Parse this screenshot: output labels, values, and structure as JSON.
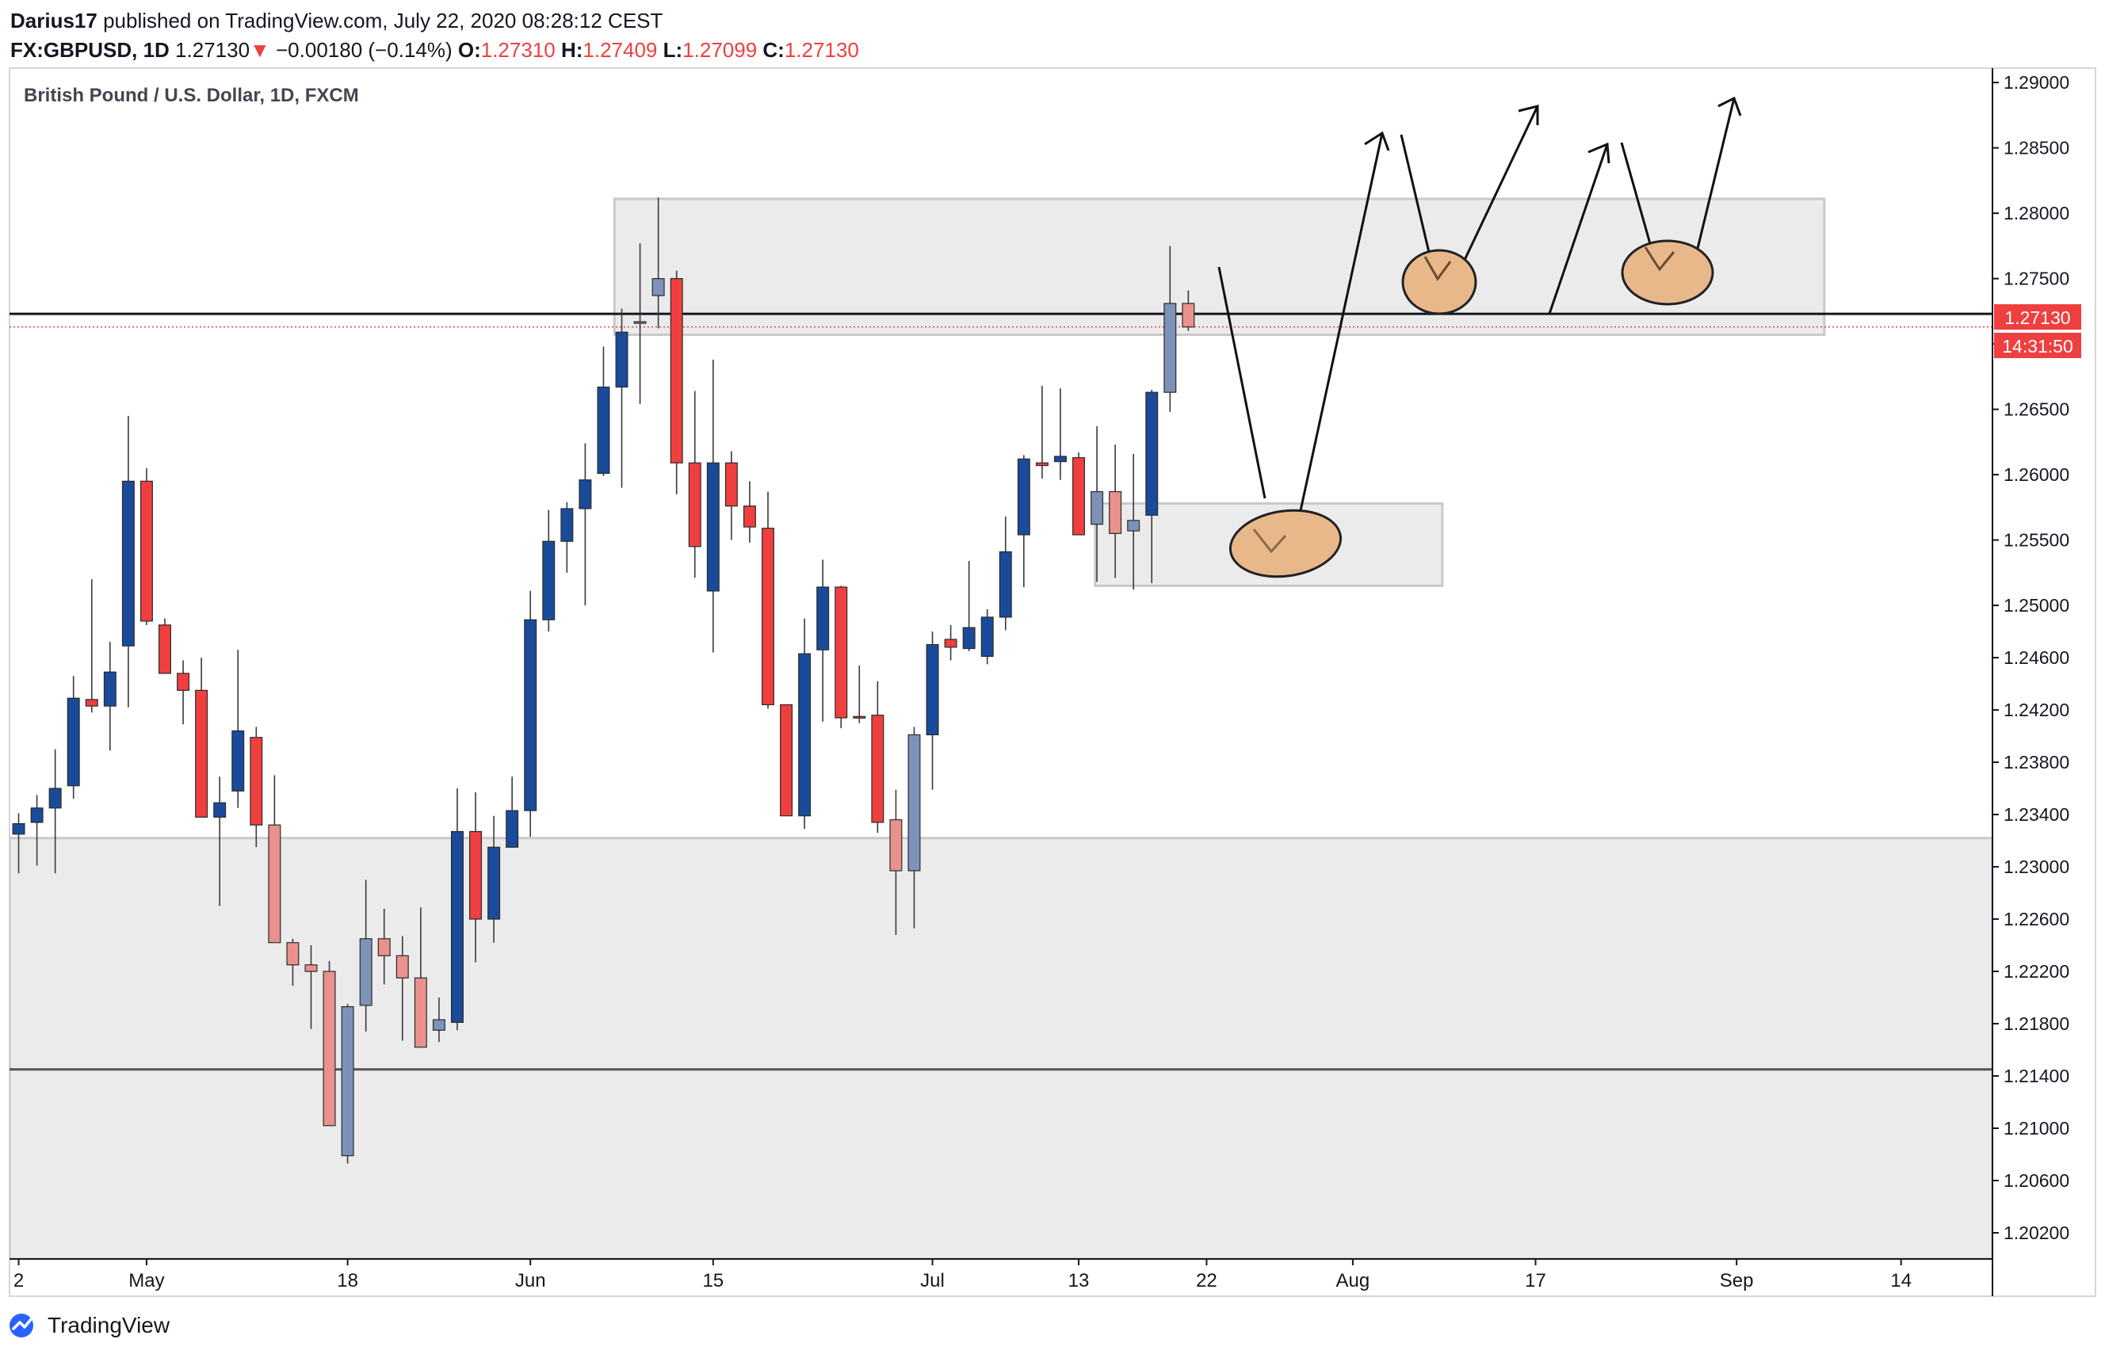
{
  "header": {
    "publisher_name": "Darius17",
    "published_text": "published on TradingView.com, July 22, 2020 08:28:12 CEST",
    "symbol": "FX:GBPUSD, 1D",
    "last": "1.27130",
    "change_arrow": "▼",
    "change": "−0.00180 (−0.14%)",
    "o_label": "O:",
    "o_value": "1.27310",
    "h_label": "H:",
    "h_value": "1.27409",
    "l_label": "L:",
    "l_value": "1.27099",
    "c_label": "C:",
    "c_value": "1.27130"
  },
  "chart_title": "British Pound / U.S. Dollar, 1D, FXCM",
  "footer": {
    "brand": "TradingView",
    "logo_icon": "tradingview-logo-icon"
  },
  "colors": {
    "up": "#1a4b9b",
    "down": "#ef3f3f",
    "up_faded": "#7d92b8",
    "down_faded": "#e8918d",
    "zone": "#e9e9e9",
    "zone_border": "#c9c9c9",
    "current_price": "#ef3f3f",
    "axis": "#131722",
    "ellipse_fill": "#e8b88a",
    "ellipse_stroke": "#222222"
  },
  "chart_data": {
    "type": "candlestick",
    "title": "British Pound / U.S. Dollar, 1D, FXCM",
    "ylim": [
      1.2,
      1.2911
    ],
    "y_ticks": [
      "1.29000",
      "1.28500",
      "1.28000",
      "1.27500",
      "1.27000",
      "1.26500",
      "1.26000",
      "1.25500",
      "1.25000",
      "1.24600",
      "1.24200",
      "1.23800",
      "1.23400",
      "1.23000",
      "1.22600",
      "1.22200",
      "1.21800",
      "1.21400",
      "1.21000",
      "1.20600",
      "1.20200"
    ],
    "x_labels": [
      {
        "label": "2",
        "x_index": 0
      },
      {
        "label": "May",
        "x_index": 7
      },
      {
        "label": "18",
        "x_index": 18
      },
      {
        "label": "Jun",
        "x_index": 28
      },
      {
        "label": "15",
        "x_index": 38
      },
      {
        "label": "Jul",
        "x_index": 50
      },
      {
        "label": "13",
        "x_index": 58
      },
      {
        "label": "22",
        "x_index": 65
      },
      {
        "label": "Aug",
        "x_index": 73
      },
      {
        "label": "17",
        "x_index": 83
      },
      {
        "label": "Sep",
        "x_index": 94
      },
      {
        "label": "14",
        "x_index": 103
      }
    ],
    "index_range": [
      -0.5,
      108
    ],
    "current_price": {
      "value": 1.2713,
      "label": "1.27130",
      "countdown": "14:31:50"
    },
    "horizontal_lines": [
      {
        "value": 1.2723,
        "style": "solid-dark"
      },
      {
        "value": 1.2145,
        "style": "solid-gray"
      }
    ],
    "zones": [
      {
        "x0": 32.6,
        "x1": 98.8,
        "y_top": 1.2811,
        "y_bottom": 1.2707
      },
      {
        "x0": 58.9,
        "x1": 77.9,
        "y_top": 1.2578,
        "y_bottom": 1.2515
      },
      {
        "x0": -0.5,
        "x1": 108,
        "y_top": 1.2322,
        "y_bottom": 1.2
      }
    ],
    "candles": [
      [
        0,
        1.2333,
        1.2341,
        1.2295,
        1.2325,
        "up"
      ],
      [
        1,
        1.2334,
        1.2355,
        1.2301,
        1.2345,
        "up"
      ],
      [
        2,
        1.2345,
        1.239,
        1.2295,
        1.236,
        "up"
      ],
      [
        3,
        1.2362,
        1.2446,
        1.2352,
        1.2429,
        "up"
      ],
      [
        4,
        1.2428,
        1.252,
        1.2418,
        1.2423,
        "down"
      ],
      [
        5,
        1.2423,
        1.2472,
        1.2389,
        1.2449,
        "up"
      ],
      [
        6,
        1.2469,
        1.2645,
        1.2422,
        1.2595,
        "up"
      ],
      [
        7,
        1.2595,
        1.2605,
        1.2485,
        1.2488,
        "down"
      ],
      [
        8,
        1.2485,
        1.249,
        1.2448,
        1.2448,
        "down"
      ],
      [
        9,
        1.2448,
        1.2458,
        1.2409,
        1.2435,
        "down"
      ],
      [
        10,
        1.2435,
        1.246,
        1.24,
        1.2338,
        "down"
      ],
      [
        11,
        1.2338,
        1.2369,
        1.227,
        1.2349,
        "up"
      ],
      [
        12,
        1.2358,
        1.2466,
        1.2345,
        1.2404,
        "up"
      ],
      [
        13,
        1.2399,
        1.2407,
        1.2315,
        1.2332,
        "down"
      ],
      [
        14,
        1.2332,
        1.237,
        1.2259,
        1.2242,
        "down",
        "faded"
      ],
      [
        15,
        1.2242,
        1.2245,
        1.2209,
        1.2225,
        "down",
        "faded"
      ],
      [
        16,
        1.2225,
        1.224,
        1.2176,
        1.222,
        "down",
        "faded"
      ],
      [
        17,
        1.222,
        1.2228,
        1.2102,
        1.2102,
        "down",
        "faded"
      ],
      [
        18,
        1.2079,
        1.2195,
        1.2073,
        1.2193,
        "up",
        "faded"
      ],
      [
        19,
        1.2194,
        1.229,
        1.2174,
        1.2245,
        "up",
        "faded"
      ],
      [
        20,
        1.2245,
        1.2268,
        1.221,
        1.2232,
        "down",
        "faded"
      ],
      [
        21,
        1.2232,
        1.2247,
        1.2167,
        1.2215,
        "down",
        "faded"
      ],
      [
        22,
        1.2215,
        1.2269,
        1.2162,
        1.2162,
        "down",
        "faded"
      ],
      [
        23,
        1.2175,
        1.22,
        1.2166,
        1.2183,
        "up",
        "faded"
      ],
      [
        24,
        1.2181,
        1.236,
        1.2175,
        1.2327,
        "up"
      ],
      [
        25,
        1.2327,
        1.2357,
        1.2227,
        1.226,
        "down"
      ],
      [
        26,
        1.226,
        1.2339,
        1.2242,
        1.2315,
        "up"
      ],
      [
        27,
        1.2315,
        1.2369,
        1.2315,
        1.2343,
        "up"
      ],
      [
        28,
        1.2343,
        1.2511,
        1.2323,
        1.2489,
        "up"
      ],
      [
        29,
        1.2489,
        1.2573,
        1.248,
        1.2549,
        "up"
      ],
      [
        30,
        1.2549,
        1.2579,
        1.2525,
        1.2574,
        "up"
      ],
      [
        31,
        1.2574,
        1.2624,
        1.25,
        1.2596,
        "up"
      ],
      [
        32,
        1.2601,
        1.2698,
        1.2599,
        1.2667,
        "up"
      ],
      [
        33,
        1.2667,
        1.2727,
        1.259,
        1.2709,
        "up"
      ],
      [
        34,
        1.2717,
        1.2777,
        1.2654,
        1.2716,
        "up",
        "faded"
      ],
      [
        35,
        1.2737,
        1.2812,
        1.2712,
        1.275,
        "up",
        "faded"
      ],
      [
        36,
        1.275,
        1.2756,
        1.2585,
        1.2609,
        "down"
      ],
      [
        37,
        1.2609,
        1.2664,
        1.2521,
        1.2545,
        "down"
      ],
      [
        38,
        1.2609,
        1.2688,
        1.2464,
        1.2511,
        "up"
      ],
      [
        39,
        1.2609,
        1.2618,
        1.255,
        1.2576,
        "down"
      ],
      [
        40,
        1.2576,
        1.2595,
        1.2548,
        1.256,
        "down"
      ],
      [
        41,
        1.2559,
        1.2587,
        1.2421,
        1.2424,
        "down"
      ],
      [
        42,
        1.2424,
        1.2424,
        1.2339,
        1.2339,
        "down"
      ],
      [
        43,
        1.2339,
        1.249,
        1.2329,
        1.2463,
        "up"
      ],
      [
        44,
        1.2466,
        1.2535,
        1.2411,
        1.2514,
        "up"
      ],
      [
        45,
        1.2514,
        1.2515,
        1.2406,
        1.2414,
        "down"
      ],
      [
        46,
        1.2414,
        1.2454,
        1.241,
        1.2415,
        "down"
      ],
      [
        47,
        1.2416,
        1.2442,
        1.2326,
        1.2334,
        "down"
      ],
      [
        48,
        1.2336,
        1.2359,
        1.2248,
        1.2297,
        "down",
        "faded"
      ],
      [
        49,
        1.2297,
        1.2407,
        1.2253,
        1.2401,
        "up",
        "faded"
      ],
      [
        50,
        1.2401,
        1.248,
        1.2359,
        1.247,
        "up"
      ],
      [
        51,
        1.2474,
        1.2485,
        1.2458,
        1.2468,
        "down"
      ],
      [
        52,
        1.2467,
        1.2534,
        1.2465,
        1.2483,
        "up"
      ],
      [
        53,
        1.2461,
        1.2497,
        1.2455,
        1.2491,
        "up"
      ],
      [
        54,
        1.2491,
        1.2568,
        1.2481,
        1.2541,
        "up"
      ],
      [
        55,
        1.2554,
        1.2615,
        1.2514,
        1.2612,
        "up"
      ],
      [
        56,
        1.2609,
        1.2668,
        1.2597,
        1.2607,
        "down"
      ],
      [
        57,
        1.261,
        1.2666,
        1.2596,
        1.2614,
        "up"
      ],
      [
        58,
        1.2613,
        1.2617,
        1.2561,
        1.2554,
        "down"
      ],
      [
        59,
        1.2562,
        1.2637,
        1.2518,
        1.2587,
        "up",
        "faded"
      ],
      [
        60,
        1.2587,
        1.2623,
        1.2521,
        1.2555,
        "down",
        "faded"
      ],
      [
        61,
        1.2557,
        1.2616,
        1.2512,
        1.2565,
        "up",
        "faded"
      ],
      [
        62,
        1.2569,
        1.2665,
        1.2517,
        1.2663,
        "up"
      ],
      [
        63,
        1.2663,
        1.2775,
        1.2648,
        1.2731,
        "up",
        "faded"
      ],
      [
        64,
        1.2731,
        1.2741,
        1.271,
        1.2713,
        "down",
        "faded"
      ]
    ]
  }
}
